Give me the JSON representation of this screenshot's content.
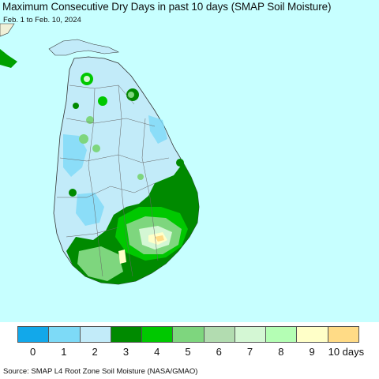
{
  "title": "Maximum Consecutive Dry Days in past 10 days (SMAP Soil Moisture)",
  "subtitle": "Feb. 1 to Feb. 10, 2024",
  "source": "Source: SMAP L4 Root Zone Soil Moisture (NASA/GMAO)",
  "colors": {
    "ocean": "#c7ffff",
    "india_land": "#f0f0e0"
  },
  "legend": {
    "items": [
      {
        "label": "0",
        "color": "#12a8ea"
      },
      {
        "label": "1",
        "color": "#7ddaf7"
      },
      {
        "label": "2",
        "color": "#c2ebf9"
      },
      {
        "label": "3",
        "color": "#008a00"
      },
      {
        "label": "4",
        "color": "#00c800"
      },
      {
        "label": "5",
        "color": "#7ed67e"
      },
      {
        "label": "6",
        "color": "#b2dcb0"
      },
      {
        "label": "7",
        "color": "#d4f7d4"
      },
      {
        "label": "8",
        "color": "#b4feb4"
      },
      {
        "label": "9",
        "color": "#ffffc8"
      },
      {
        "label": "10 days",
        "color": "#ffdb86"
      }
    ]
  }
}
